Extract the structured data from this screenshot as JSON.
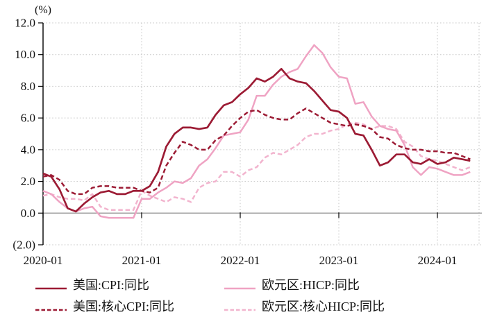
{
  "chart_data": {
    "type": "line",
    "title": "",
    "ylabel": "(%)",
    "ylim": [
      -2,
      12
    ],
    "grid": "dotted",
    "legend_position": "bottom",
    "y_ticks": [
      12,
      10,
      8,
      6,
      4,
      2,
      0,
      -2
    ],
    "y_tick_labels": [
      "12.0",
      "10.0",
      "8.0",
      "6.0",
      "4.0",
      "2.0",
      "0.0",
      "(2.0)"
    ],
    "negative_tick_label_color": "#FF0000",
    "x_tick_labels": [
      "2020-01",
      "2021-01",
      "2022-01",
      "2023-01",
      "2024-01"
    ],
    "x_tick_month_index": [
      0,
      12,
      24,
      36,
      48
    ],
    "x_start": "2020-01",
    "x_freq": "monthly",
    "n_points": 53,
    "series": [
      {
        "name": "美国:CPI:同比",
        "line_style": "solid",
        "color": "#9C1B34",
        "values": [
          2.5,
          2.3,
          1.5,
          0.3,
          0.1,
          0.6,
          1.0,
          1.3,
          1.4,
          1.2,
          1.2,
          1.4,
          1.4,
          1.7,
          2.6,
          4.2,
          5.0,
          5.4,
          5.4,
          5.3,
          5.4,
          6.2,
          6.8,
          7.0,
          7.5,
          7.9,
          8.5,
          8.3,
          8.6,
          9.1,
          8.5,
          8.3,
          8.2,
          7.7,
          7.1,
          6.5,
          6.4,
          6.0,
          5.0,
          4.9,
          4.0,
          3.0,
          3.2,
          3.7,
          3.7,
          3.2,
          3.1,
          3.4,
          3.1,
          3.2,
          3.5,
          3.4,
          3.3
        ]
      },
      {
        "name": "美国:核心CPI:同比",
        "line_style": "dashed",
        "color": "#9C1B34",
        "values": [
          2.3,
          2.4,
          2.1,
          1.4,
          1.2,
          1.2,
          1.6,
          1.7,
          1.7,
          1.6,
          1.6,
          1.6,
          1.4,
          1.3,
          1.6,
          3.0,
          3.8,
          4.5,
          4.3,
          4.0,
          4.0,
          4.6,
          4.9,
          5.5,
          6.0,
          6.4,
          6.5,
          6.2,
          6.0,
          5.9,
          5.9,
          6.3,
          6.6,
          6.3,
          6.0,
          5.7,
          5.6,
          5.5,
          5.6,
          5.5,
          5.3,
          4.8,
          4.7,
          4.3,
          4.1,
          4.0,
          4.0,
          3.9,
          3.9,
          3.8,
          3.8,
          3.6,
          3.4
        ]
      },
      {
        "name": "欧元区:HICP:同比",
        "line_style": "solid",
        "color": "#EFA3C3",
        "values": [
          1.4,
          1.2,
          0.7,
          0.3,
          0.1,
          0.3,
          0.4,
          -0.2,
          -0.3,
          -0.3,
          -0.3,
          -0.3,
          0.9,
          0.9,
          1.3,
          1.6,
          2.0,
          1.9,
          2.2,
          3.0,
          3.4,
          4.1,
          4.9,
          5.0,
          5.1,
          5.9,
          7.4,
          7.4,
          8.1,
          8.6,
          8.9,
          9.1,
          9.9,
          10.6,
          10.1,
          9.2,
          8.6,
          8.5,
          6.9,
          7.0,
          6.1,
          5.5,
          5.3,
          5.2,
          4.3,
          2.9,
          2.4,
          2.9,
          2.8,
          2.6,
          2.4,
          2.4,
          2.6
        ]
      },
      {
        "name": "欧元区:核心HICP:同比",
        "line_style": "dashed",
        "color": "#F2B4CE",
        "values": [
          1.1,
          1.2,
          1.0,
          0.9,
          0.9,
          0.8,
          1.2,
          0.4,
          0.2,
          0.2,
          0.2,
          0.2,
          1.4,
          1.1,
          0.9,
          0.7,
          1.0,
          0.9,
          0.7,
          1.6,
          1.9,
          2.0,
          2.6,
          2.6,
          2.3,
          2.7,
          2.9,
          3.5,
          3.8,
          3.7,
          4.0,
          4.3,
          4.8,
          5.0,
          5.0,
          5.2,
          5.3,
          5.6,
          5.7,
          5.6,
          5.3,
          5.5,
          5.5,
          5.3,
          4.5,
          4.2,
          3.6,
          3.4,
          3.3,
          3.1,
          2.9,
          2.7,
          2.9
        ]
      }
    ]
  }
}
